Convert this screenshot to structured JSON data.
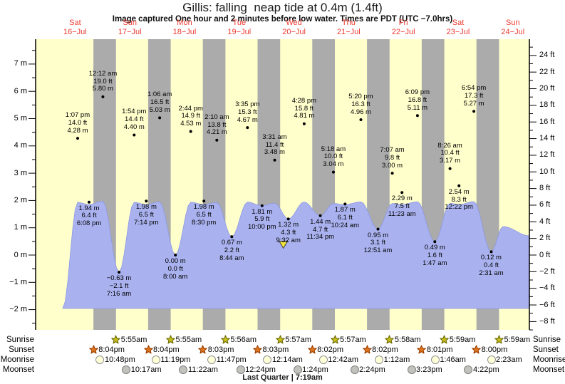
{
  "title": "Gillis: falling  neap tide at 0.4m (1.4ft)",
  "subtitle": "Image captured One hour and 2 minutes before low water. Times are PDT (UTC −7.0hrs)",
  "chart_data": {
    "type": "area",
    "station": "Gillis",
    "days": [
      {
        "dow": "Sat",
        "date": "16−Jul"
      },
      {
        "dow": "Sun",
        "date": "17−Jul"
      },
      {
        "dow": "Mon",
        "date": "18−Jul"
      },
      {
        "dow": "Tue",
        "date": "19−Jul"
      },
      {
        "dow": "Wed",
        "date": "20−Jul"
      },
      {
        "dow": "Thu",
        "date": "21−Jul"
      },
      {
        "dow": "Fri",
        "date": "22−Jul"
      },
      {
        "dow": "Sat",
        "date": "23−Jul"
      },
      {
        "dow": "Sun",
        "date": "24−Jul"
      }
    ],
    "y_axis_left": {
      "unit": "m",
      "major_ticks": [
        7,
        6,
        5,
        4,
        3,
        2,
        1,
        0,
        -1,
        -2
      ]
    },
    "y_axis_right": {
      "unit": "ft",
      "major_ticks": [
        24,
        22,
        20,
        18,
        16,
        14,
        12,
        10,
        8,
        6,
        4,
        2,
        0,
        -2,
        -4,
        -6,
        -8
      ]
    },
    "tide_events": [
      {
        "kind": "high",
        "day_index": 0,
        "time": "1:07 pm",
        "ft_label": "14.0 ft",
        "m_label": "4.28 m",
        "m": 4.28
      },
      {
        "kind": "low",
        "day_index": 0,
        "time": "6:08 pm",
        "ft_label": "6.4 ft",
        "m_label": "1.94 m",
        "m": 1.94
      },
      {
        "kind": "high",
        "day_index": 1,
        "time": "12:12 am",
        "ft_label": "19.0 ft",
        "m_label": "5.80 m",
        "m": 5.8
      },
      {
        "kind": "low",
        "day_index": 1,
        "time": "7:16 am",
        "ft_label": "−2.1 ft",
        "m_label": "−0.63 m",
        "m": -0.63
      },
      {
        "kind": "high",
        "day_index": 1,
        "time": "1:54 pm",
        "ft_label": "14.4 ft",
        "m_label": "4.40 m",
        "m": 4.4
      },
      {
        "kind": "low",
        "day_index": 1,
        "time": "7:14 pm",
        "ft_label": "6.5 ft",
        "m_label": "1.98 m",
        "m": 1.98
      },
      {
        "kind": "high",
        "day_index": 2,
        "time": "1:06 am",
        "ft_label": "16.5 ft",
        "m_label": "5.03 m",
        "m": 5.03
      },
      {
        "kind": "low",
        "day_index": 2,
        "time": "8:00 am",
        "ft_label": "0.0 ft",
        "m_label": "0.00 m",
        "m": 0
      },
      {
        "kind": "high",
        "day_index": 2,
        "time": "2:44 pm",
        "ft_label": "14.9 ft",
        "m_label": "4.53 m",
        "m": 4.53
      },
      {
        "kind": "low",
        "day_index": 2,
        "time": "8:30 pm",
        "ft_label": "6.5 ft",
        "m_label": "1.98 m",
        "m": 1.98
      },
      {
        "kind": "high",
        "day_index": 3,
        "time": "2:10 am",
        "ft_label": "13.8 ft",
        "m_label": "4.21 m",
        "m": 4.21
      },
      {
        "kind": "low",
        "day_index": 3,
        "time": "8:44 am",
        "ft_label": "2.2 ft",
        "m_label": "0.67 m",
        "m": 0.67
      },
      {
        "kind": "high",
        "day_index": 3,
        "time": "3:35 pm",
        "ft_label": "15.3 ft",
        "m_label": "4.67 m",
        "m": 4.67
      },
      {
        "kind": "low",
        "day_index": 3,
        "time": "10:00 pm",
        "ft_label": "5.9 ft",
        "m_label": "1.81 m",
        "m": 1.81
      },
      {
        "kind": "high",
        "day_index": 4,
        "time": "3:31 am",
        "ft_label": "11.4 ft",
        "m_label": "3.48 m",
        "m": 3.48
      },
      {
        "kind": "low",
        "day_index": 4,
        "time": "9:32 am",
        "ft_label": "4.3 ft",
        "m_label": "1.32 m",
        "m": 1.32,
        "current": true
      },
      {
        "kind": "high",
        "day_index": 4,
        "time": "4:28 pm",
        "ft_label": "15.8 ft",
        "m_label": "4.81 m",
        "m": 4.81
      },
      {
        "kind": "low",
        "day_index": 4,
        "time": "11:34 pm",
        "ft_label": "4.7 ft",
        "m_label": "1.44 m",
        "m": 1.44
      },
      {
        "kind": "high",
        "day_index": 5,
        "time": "5:18 am",
        "ft_label": "10.0 ft",
        "m_label": "3.04 m",
        "m": 3.04
      },
      {
        "kind": "low",
        "day_index": 5,
        "time": "10:24 am",
        "ft_label": "6.1 ft",
        "m_label": "1.87 m",
        "m": 1.87
      },
      {
        "kind": "high",
        "day_index": 5,
        "time": "5:20 pm",
        "ft_label": "16.3 ft",
        "m_label": "4.96 m",
        "m": 4.96
      },
      {
        "kind": "low",
        "day_index": 6,
        "time": "12:51 am",
        "ft_label": "3.1 ft",
        "m_label": "0.95 m",
        "m": 0.95
      },
      {
        "kind": "high",
        "day_index": 6,
        "time": "7:07 am",
        "ft_label": "9.8 ft",
        "m_label": "3.00 m",
        "m": 3
      },
      {
        "kind": "low",
        "day_index": 6,
        "time": "11:23 am",
        "ft_label": "7.5 ft",
        "m_label": "2.29 m",
        "m": 2.29
      },
      {
        "kind": "high",
        "day_index": 6,
        "time": "6:09 pm",
        "ft_label": "16.8 ft",
        "m_label": "5.11 m",
        "m": 5.11
      },
      {
        "kind": "low",
        "day_index": 7,
        "time": "1:47 am",
        "ft_label": "1.6 ft",
        "m_label": "0.49 m",
        "m": 0.49
      },
      {
        "kind": "high",
        "day_index": 7,
        "time": "8:26 am",
        "ft_label": "10.4 ft",
        "m_label": "3.17 m",
        "m": 3.17
      },
      {
        "kind": "low",
        "day_index": 7,
        "time": "12:22 pm",
        "ft_label": "8.3 ft",
        "m_label": "2.54 m",
        "m": 2.54
      },
      {
        "kind": "high",
        "day_index": 7,
        "time": "6:54 pm",
        "ft_label": "17.3 ft",
        "m_label": "5.27 m",
        "m": 5.27
      },
      {
        "kind": "low",
        "day_index": 8,
        "time": "2:31 am",
        "ft_label": "0.4 ft",
        "m_label": "0.12 m",
        "m": 0.12
      }
    ],
    "current_marker": {
      "symbol": "yellow-triangle",
      "at_time": "9:32 am"
    }
  },
  "astro": {
    "rows": [
      {
        "id": "sunrise",
        "label": "Sunrise",
        "icon": "sunrise-star-icon",
        "items": [
          {
            "time": "5:55am",
            "day_index": 1
          },
          {
            "time": "5:55am",
            "day_index": 2
          },
          {
            "time": "5:56am",
            "day_index": 3
          },
          {
            "time": "5:57am",
            "day_index": 4
          },
          {
            "time": "5:57am",
            "day_index": 5
          },
          {
            "time": "5:58am",
            "day_index": 6
          },
          {
            "time": "5:59am",
            "day_index": 7
          },
          {
            "time": "5:59am",
            "day_index": 8
          }
        ]
      },
      {
        "id": "sunset",
        "label": "Sunset",
        "icon": "sunset-star-icon",
        "items": [
          {
            "time": "8:04pm",
            "day_index": 0
          },
          {
            "time": "8:04pm",
            "day_index": 1
          },
          {
            "time": "8:03pm",
            "day_index": 2
          },
          {
            "time": "8:03pm",
            "day_index": 3
          },
          {
            "time": "8:02pm",
            "day_index": 4
          },
          {
            "time": "8:02pm",
            "day_index": 5
          },
          {
            "time": "8:01pm",
            "day_index": 6
          },
          {
            "time": "8:00pm",
            "day_index": 7
          }
        ]
      },
      {
        "id": "moonrise",
        "label": "Moonrise",
        "icon": "moonrise-icon",
        "items": [
          {
            "time": "10:48pm",
            "day_index": 0
          },
          {
            "time": "11:19pm",
            "day_index": 1
          },
          {
            "time": "11:47pm",
            "day_index": 2
          },
          {
            "time": "12:14am",
            "day_index": 4
          },
          {
            "time": "12:42am",
            "day_index": 5
          },
          {
            "time": "1:12am",
            "day_index": 6
          },
          {
            "time": "1:46am",
            "day_index": 7
          },
          {
            "time": "2:23am",
            "day_index": 8
          }
        ]
      },
      {
        "id": "moonset",
        "label": "Moonset",
        "icon": "moonset-icon",
        "items": [
          {
            "time": "10:17am",
            "day_index": 1
          },
          {
            "time": "11:22am",
            "day_index": 2
          },
          {
            "time": "12:24pm",
            "day_index": 3
          },
          {
            "time": "1:24pm",
            "day_index": 4
          },
          {
            "time": "2:24pm",
            "day_index": 5
          },
          {
            "time": "3:23pm",
            "day_index": 6
          },
          {
            "time": "4:22pm",
            "day_index": 7
          }
        ]
      }
    ],
    "caption": "Last Quarter | 7:19am"
  },
  "colors": {
    "day_band": "#FFFFCC",
    "night_band": "#ABABAB",
    "tide_fill": "#A9B2EF",
    "tide_edge": "#8C98E4",
    "day_label_red": "#EE3B33",
    "marker_fill": "#F2E33C",
    "sunrise_star_fill": "#C6C01E",
    "sunrise_star_stroke": "#6E6A00",
    "sunset_star_fill": "#E2761B",
    "sunset_star_stroke": "#993E00",
    "moonrise_fill": "#FFFFD8",
    "moonrise_stroke": "#8F8F8F",
    "moonset_fill": "#C2C2BC",
    "moonset_stroke": "#7F7F7F"
  }
}
